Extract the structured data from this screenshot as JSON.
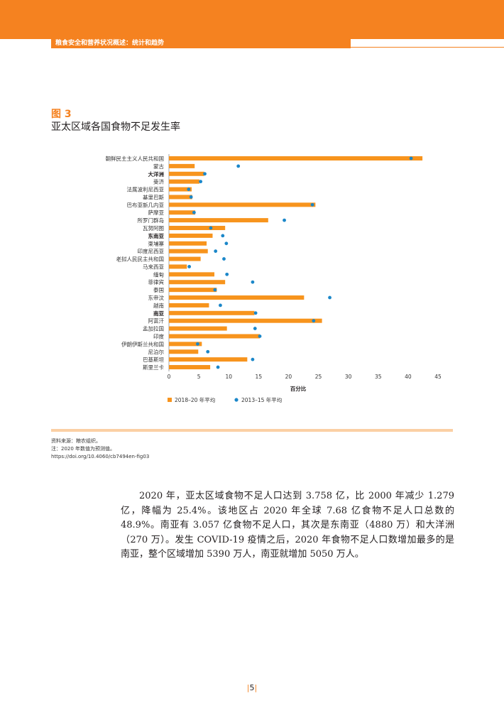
{
  "header": {
    "title": "粮食安全和营养状况概述：统计和趋势"
  },
  "figure": {
    "label": "图 3",
    "title": "亚太区域各国食物不足发生率"
  },
  "chart_data": {
    "type": "bar",
    "orientation": "horizontal",
    "categories": [
      "朝鲜民主主义人民共和国",
      "蒙古",
      "大洋洲",
      "斐济",
      "法属波利尼西亚",
      "基里巴斯",
      "巴布亚新几内亚",
      "萨摩亚",
      "所罗门群岛",
      "瓦努阿图",
      "东南亚",
      "柬埔寨",
      "印度尼西亚",
      "老挝人民民主共和国",
      "马来西亚",
      "缅甸",
      "菲律宾",
      "泰国",
      "东帝汶",
      "越南",
      "南亚",
      "阿富汗",
      "孟加拉国",
      "印度",
      "伊朗伊斯兰共和国",
      "尼泊尔",
      "巴基斯坦",
      "斯里兰卡"
    ],
    "bold_categories": [
      "大洋洲",
      "东南亚",
      "南亚"
    ],
    "series": [
      {
        "name": "2018–20 年平均",
        "type": "bar",
        "color": "#f7941d",
        "values": [
          42.4,
          4.3,
          5.9,
          5.1,
          3.8,
          3.9,
          24.5,
          4.4,
          16.6,
          9.4,
          7.3,
          6.3,
          6.5,
          5.3,
          3.0,
          7.6,
          9.4,
          8.0,
          22.6,
          6.7,
          14.3,
          25.6,
          9.7,
          15.2,
          5.5,
          4.9,
          13.1,
          6.9
        ]
      },
      {
        "name": "2013–15 年平均",
        "type": "scatter",
        "color": "#1b87c9",
        "values": [
          40.5,
          11.6,
          6.0,
          5.3,
          3.3,
          3.7,
          24.0,
          4.2,
          19.3,
          7.0,
          9.0,
          9.6,
          7.8,
          9.2,
          3.4,
          9.7,
          14.0,
          7.7,
          26.9,
          8.6,
          14.5,
          24.2,
          14.4,
          15.2,
          4.8,
          6.5,
          14.0,
          8.2
        ]
      }
    ],
    "xlabel": "百分比",
    "xticks": [
      0,
      5,
      10,
      15,
      20,
      25,
      30,
      35,
      40,
      45
    ],
    "xlim": [
      0,
      45
    ],
    "grid": false,
    "legend_position": "bottom-left"
  },
  "source_notes": {
    "source": "资料来源：粮农组织。",
    "note": "注：2020 年数值为预测值。",
    "doi": "https://doi.org/10.4060/cb7494en-fig03"
  },
  "body": {
    "paragraph": "2020 年，亚太区域食物不足人口达到 3.758 亿，比 2000 年减少 1.279 亿，降幅为 25.4%。该地区占 2020 年全球 7.68 亿食物不足人口总数的 48.9%。南亚有 3.057 亿食物不足人口，其次是东南亚（4880 万）和大洋洲（270 万）。发生 COVID-19 疫情之后，2020 年食物不足人口数增加最多的是南亚，整个区域增加 5390 万人，南亚就增加 5050 万人。"
  },
  "page": {
    "number": "5"
  }
}
